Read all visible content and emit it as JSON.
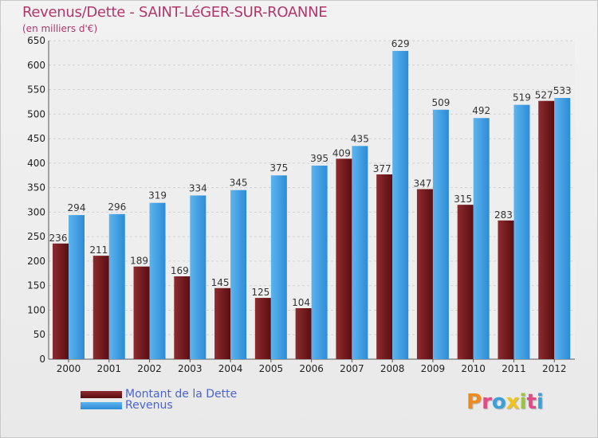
{
  "header": {
    "title": "Revenus/Dette - SAINT-LéGER-SUR-ROANNE",
    "subtitle": "(en milliers d'€)"
  },
  "legend": {
    "debt_label": "Montant de la Dette",
    "revenue_label": "Revenus"
  },
  "logo": {
    "letters": [
      "P",
      "r",
      "o",
      "x",
      "i",
      "t",
      "i"
    ],
    "colors": [
      "#f08a1c",
      "#e04a86",
      "#3aa0d8",
      "#f0c419",
      "#9bc53d",
      "#e04a86",
      "#3aa0d8"
    ]
  },
  "colors": {
    "debt": "#6b1416",
    "revenue": "#3c9de3",
    "title": "#b3366b",
    "legend_text": "#4a63d6"
  },
  "chart_data": {
    "type": "bar",
    "title": "Revenus/Dette - SAINT-LéGER-SUR-ROANNE",
    "subtitle": "(en milliers d'€)",
    "categories": [
      "2000",
      "2001",
      "2002",
      "2003",
      "2004",
      "2005",
      "2006",
      "2007",
      "2008",
      "2009",
      "2010",
      "2011",
      "2012"
    ],
    "series": [
      {
        "name": "Montant de la Dette",
        "values": [
          236,
          211,
          189,
          169,
          145,
          125,
          104,
          409,
          377,
          347,
          315,
          283,
          527
        ]
      },
      {
        "name": "Revenus",
        "values": [
          294,
          296,
          319,
          334,
          345,
          375,
          395,
          435,
          629,
          509,
          492,
          519,
          533
        ]
      }
    ],
    "ylim": [
      0,
      650
    ],
    "yticks": [
      0,
      50,
      100,
      150,
      200,
      250,
      300,
      350,
      400,
      450,
      500,
      550,
      600,
      650
    ],
    "grid": true,
    "legend_position": "bottom-left"
  }
}
